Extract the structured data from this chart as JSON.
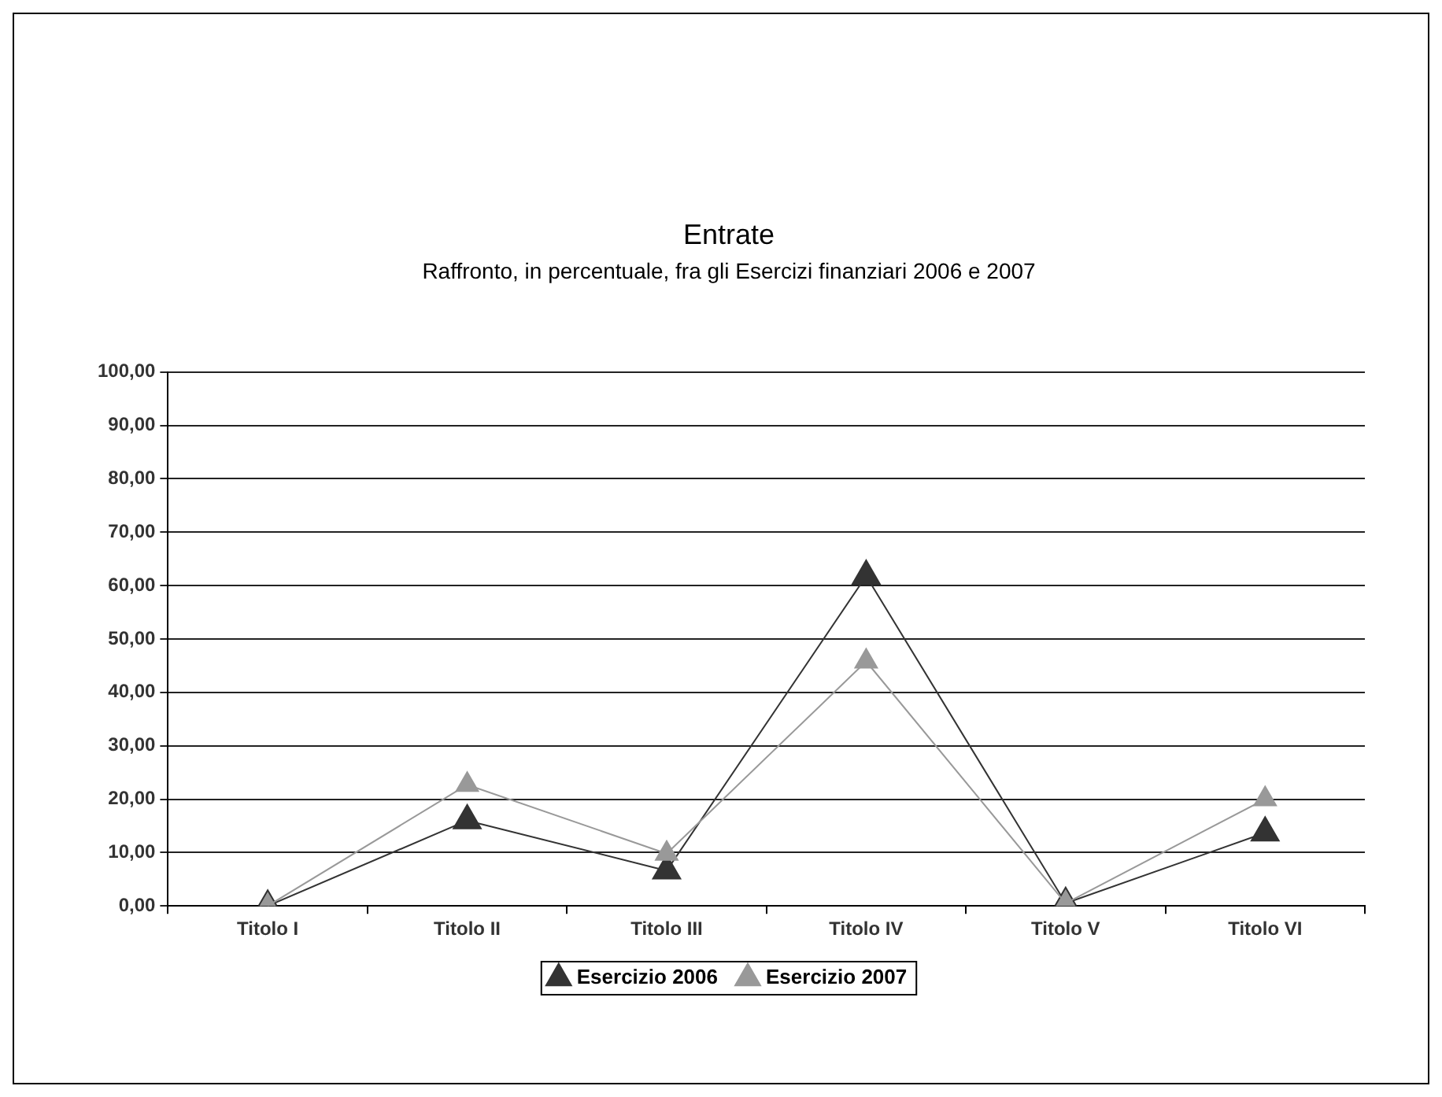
{
  "chart_data": {
    "type": "line",
    "title": "Entrate",
    "subtitle": "Raffronto, in percentuale, fra gli Esercizi finanziari 2006 e 2007",
    "categories": [
      "Titolo I",
      "Titolo II",
      "Titolo III",
      "Titolo IV",
      "Titolo V",
      "Titolo VI"
    ],
    "series": [
      {
        "name": "Esercizio 2006",
        "color": "#333333",
        "values": [
          0,
          16,
          6.6,
          61.8,
          0.5,
          13.7
        ]
      },
      {
        "name": "Esercizio 2007",
        "color": "#999999",
        "values": [
          0,
          22.7,
          9.8,
          45.8,
          0.5,
          20
        ]
      }
    ],
    "ylim": [
      0,
      100
    ],
    "yticks": [
      {
        "value": 0,
        "label": "0,00"
      },
      {
        "value": 10,
        "label": "10,00"
      },
      {
        "value": 20,
        "label": "20,00"
      },
      {
        "value": 30,
        "label": "30,00"
      },
      {
        "value": 40,
        "label": "40,00"
      },
      {
        "value": 50,
        "label": "50,00"
      },
      {
        "value": 60,
        "label": "60,00"
      },
      {
        "value": 70,
        "label": "70,00"
      },
      {
        "value": 80,
        "label": "80,00"
      },
      {
        "value": 90,
        "label": "90,00"
      },
      {
        "value": 100,
        "label": "100,00"
      }
    ],
    "grid": "y",
    "legend": "bottom",
    "marker": "triangle",
    "line_style": "solid"
  }
}
